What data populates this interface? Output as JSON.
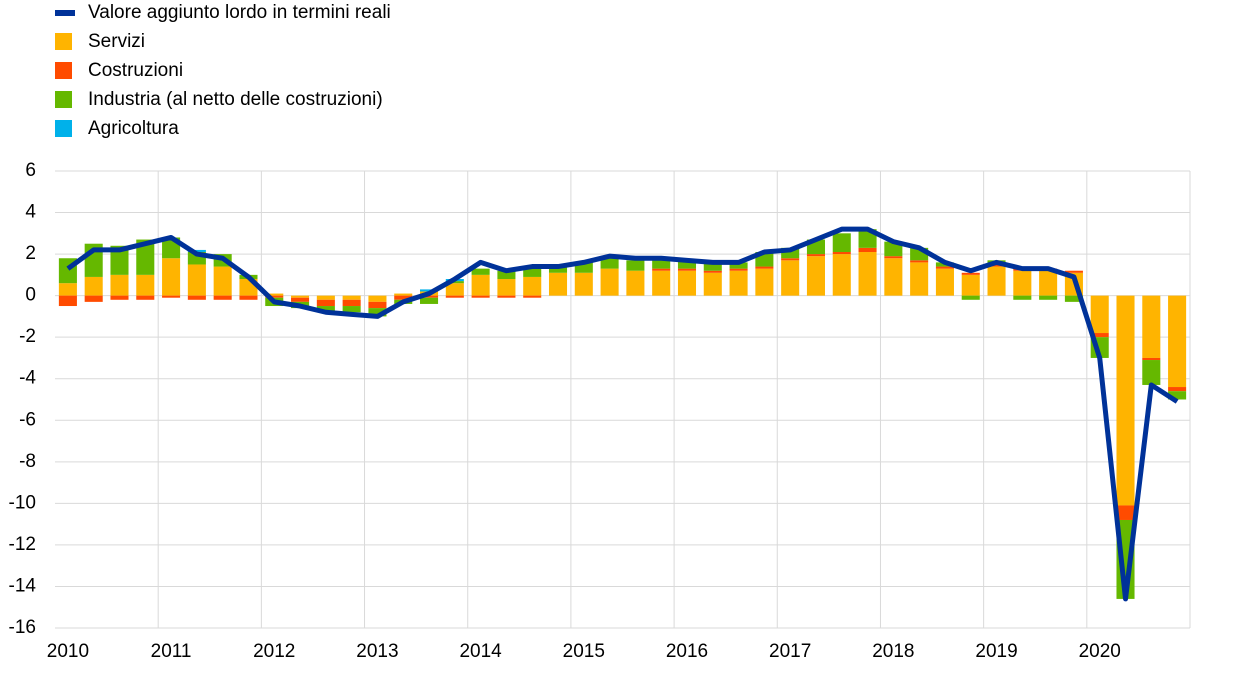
{
  "chart_data": {
    "type": "bar-line",
    "categories": [
      "2010",
      null,
      null,
      null,
      "2011",
      null,
      null,
      null,
      "2012",
      null,
      null,
      null,
      "2013",
      null,
      null,
      null,
      "2014",
      null,
      null,
      null,
      "2015",
      null,
      null,
      null,
      "2016",
      null,
      null,
      null,
      "2017",
      null,
      null,
      null,
      "2018",
      null,
      null,
      null,
      "2019",
      null,
      null,
      null,
      "2020",
      null,
      null,
      null
    ],
    "series": [
      {
        "name": "Servizi",
        "color": "#ffb400",
        "values": [
          0.6,
          0.9,
          1.0,
          1.0,
          1.8,
          1.5,
          1.4,
          0.8,
          0.1,
          -0.1,
          -0.2,
          -0.2,
          -0.3,
          0.1,
          0.2,
          0.6,
          1.0,
          0.8,
          0.9,
          1.1,
          1.1,
          1.3,
          1.2,
          1.2,
          1.2,
          1.1,
          1.2,
          1.3,
          1.7,
          1.9,
          2.0,
          2.1,
          1.8,
          1.6,
          1.3,
          1.0,
          1.4,
          1.2,
          1.2,
          1.1,
          -1.8,
          -10.1,
          -3.0,
          -4.4
        ]
      },
      {
        "name": "Costruzioni",
        "color": "#ff4b00",
        "values": [
          -0.5,
          -0.3,
          -0.2,
          -0.2,
          -0.1,
          -0.2,
          -0.2,
          -0.2,
          -0.1,
          -0.2,
          -0.3,
          -0.3,
          -0.3,
          -0.2,
          -0.1,
          -0.1,
          -0.1,
          -0.1,
          -0.1,
          0,
          0,
          0,
          0,
          0.1,
          0.1,
          0.1,
          0.1,
          0.1,
          0.1,
          0.1,
          0.1,
          0.2,
          0.1,
          0.1,
          0.1,
          0.1,
          0.1,
          0.1,
          0.1,
          0.1,
          -0.2,
          -0.7,
          -0.1,
          -0.2
        ]
      },
      {
        "name": "Industria (al netto delle costruzioni)",
        "color": "#65b800",
        "values": [
          1.2,
          1.6,
          1.4,
          1.7,
          1.0,
          0.6,
          0.6,
          0.2,
          -0.4,
          -0.3,
          -0.3,
          -0.3,
          -0.4,
          -0.2,
          -0.3,
          0.1,
          0.3,
          0.4,
          0.4,
          0.3,
          0.5,
          0.5,
          0.5,
          0.4,
          0.4,
          0.4,
          0.3,
          0.7,
          0.5,
          0.7,
          0.9,
          0.9,
          0.7,
          0.6,
          0.2,
          -0.2,
          0.2,
          -0.2,
          -0.2,
          -0.3,
          -1.0,
          -3.8,
          -1.2,
          -0.4
        ]
      },
      {
        "name": "Agricoltura",
        "color": "#00b1ea",
        "values": [
          0,
          0,
          0,
          0,
          0,
          0.1,
          0,
          0,
          0,
          0,
          0,
          0,
          0,
          0,
          0.1,
          0.1,
          0,
          0,
          0,
          0,
          0,
          0,
          0,
          0,
          0,
          0,
          0,
          0,
          0,
          0,
          0,
          0,
          0,
          0,
          0,
          0,
          0,
          0,
          0,
          0,
          0,
          0,
          0,
          0
        ]
      },
      {
        "name": "Valore aggiunto lordo in termini reali",
        "color": "#003299",
        "type": "line",
        "values": [
          1.3,
          2.2,
          2.2,
          2.5,
          2.8,
          2.0,
          1.8,
          0.9,
          -0.3,
          -0.5,
          -0.8,
          -0.9,
          -1.0,
          -0.3,
          0.1,
          0.8,
          1.6,
          1.2,
          1.4,
          1.4,
          1.6,
          1.9,
          1.8,
          1.8,
          1.7,
          1.6,
          1.6,
          2.1,
          2.2,
          2.7,
          3.2,
          3.2,
          2.6,
          2.3,
          1.6,
          1.2,
          1.6,
          1.3,
          1.3,
          0.9,
          -3.0,
          -14.6,
          -4.3,
          -5.1
        ]
      }
    ],
    "ylim": [
      -16,
      6
    ],
    "yticks": [
      -16,
      -14,
      -12,
      -10,
      -8,
      -6,
      -4,
      -2,
      0,
      2,
      4,
      6
    ],
    "grid": true
  }
}
